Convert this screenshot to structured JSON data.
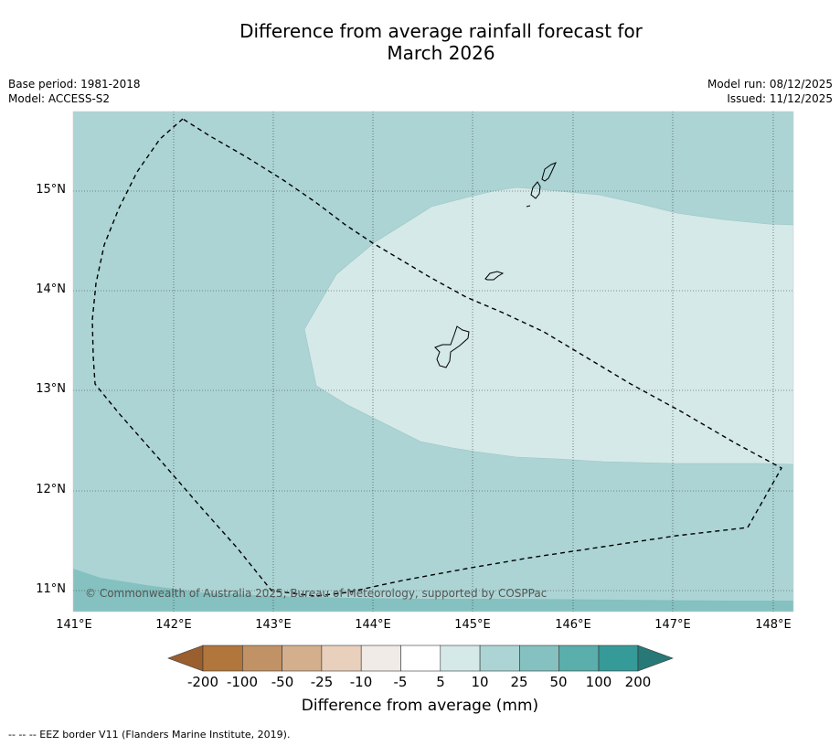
{
  "header": {
    "title_line1": "Difference from average rainfall forecast for",
    "title_line2": "March 2026",
    "base_period": "Base period: 1981-2018",
    "model": "Model: ACCESS-S2",
    "model_run": "Model run: 08/12/2025",
    "issued": "Issued: 11/12/2025"
  },
  "map": {
    "lat_labels": [
      "15°N",
      "14°N",
      "13°N",
      "12°N",
      "11°N"
    ],
    "lon_labels": [
      "141°E",
      "142°E",
      "143°E",
      "144°E",
      "145°E",
      "146°E",
      "147°E",
      "148°E"
    ],
    "copyright": "© Commonwealth of Australia 2025, Bureau of Meteorology, supported by COSPPac",
    "region_colors": {
      "band_5_10": "#d4e9e8",
      "band_10_25": "#acd4d4",
      "band_25_50": "#84c1c0"
    }
  },
  "colorbar": {
    "labels": [
      "-200",
      "-100",
      "-50",
      "-25",
      "-10",
      "-5",
      "5",
      "10",
      "25",
      "50",
      "100",
      "200"
    ],
    "colors": [
      "#9a5f2f",
      "#b1763c",
      "#c09266",
      "#d3af8d",
      "#e8d0bd",
      "#f0ebe6",
      "#ffffff",
      "#d4e9e8",
      "#acd4d4",
      "#84c1c0",
      "#5aaeab",
      "#369a99",
      "#287877"
    ],
    "title": "Difference from average (mm)"
  },
  "footnote": "--  --  -- EEZ border V11 (Flanders Marine Institute, 2019)."
}
